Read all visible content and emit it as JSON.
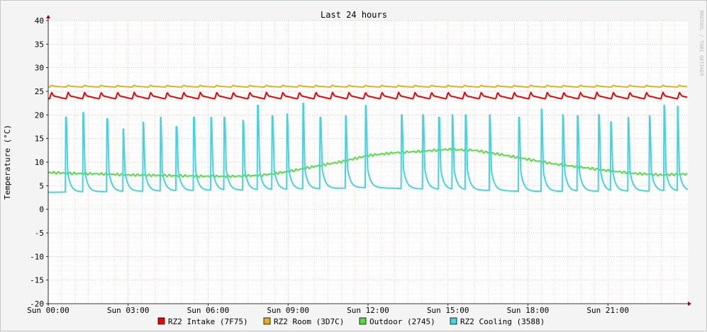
{
  "chart_data": {
    "type": "line",
    "title": "Last 24 hours",
    "ylabel": "Temperature (°C)",
    "xlabel": "",
    "watermark": "RRDTOOL / TOBI OETIKER",
    "ylim": [
      -20,
      40
    ],
    "xlim": [
      0,
      24
    ],
    "y_ticks": [
      40,
      35,
      30,
      25,
      20,
      15,
      10,
      5,
      0,
      -5,
      -10,
      -15,
      -20
    ],
    "x_ticks": [
      {
        "hour": 0,
        "label": "Sun 00:00"
      },
      {
        "hour": 3,
        "label": "Sun 03:00"
      },
      {
        "hour": 6,
        "label": "Sun 06:00"
      },
      {
        "hour": 9,
        "label": "Sun 09:00"
      },
      {
        "hour": 12,
        "label": "Sun 12:00"
      },
      {
        "hour": 15,
        "label": "Sun 15:00"
      },
      {
        "hour": 18,
        "label": "Sun 18:00"
      },
      {
        "hour": 21,
        "label": "Sun 21:00"
      }
    ],
    "grid": true,
    "legend_position": "bottom",
    "series": [
      {
        "name": "RZ2 Intake (7F75)",
        "color": "#ee0000",
        "kind": "sawtooth",
        "base": 23.4,
        "peak": 24.8,
        "period_h": 0.62,
        "phase_h": 0.05
      },
      {
        "name": "RZ2 Room (3D7C)",
        "color": "#e0b020",
        "kind": "sawtooth",
        "base": 25.9,
        "peak": 26.3,
        "period_h": 0.62,
        "phase_h": 0.05
      },
      {
        "name": "Outdoor (2745)",
        "color": "#55dd44",
        "kind": "points",
        "x": [
          0,
          1,
          2,
          3,
          4,
          5,
          6,
          7,
          8,
          9,
          10,
          11,
          12,
          13,
          14,
          15,
          16,
          17,
          18,
          19,
          20,
          21,
          22,
          23,
          24
        ],
        "values": [
          7.8,
          7.6,
          7.5,
          7.3,
          7.2,
          7.1,
          7.0,
          7.0,
          7.2,
          8.0,
          9.1,
          10.1,
          11.4,
          12.0,
          12.3,
          12.7,
          12.5,
          11.6,
          10.6,
          9.6,
          8.9,
          8.2,
          7.6,
          7.3,
          7.5
        ]
      },
      {
        "name": "RZ2 Cooling (3588)",
        "color": "#44d4e0",
        "kind": "spikes",
        "baseline": [
          {
            "x": 0,
            "y": 3.6
          },
          {
            "x": 9,
            "y": 4.2
          },
          {
            "x": 12,
            "y": 4.6
          },
          {
            "x": 15,
            "y": 4.2
          },
          {
            "x": 18,
            "y": 3.8
          },
          {
            "x": 24,
            "y": 3.9
          }
        ],
        "spikes": [
          {
            "x": 0.65,
            "y": 19.5
          },
          {
            "x": 1.3,
            "y": 20.5
          },
          {
            "x": 2.2,
            "y": 19.2
          },
          {
            "x": 2.8,
            "y": 17.0
          },
          {
            "x": 3.55,
            "y": 18.4
          },
          {
            "x": 4.2,
            "y": 19.5
          },
          {
            "x": 4.8,
            "y": 17.5
          },
          {
            "x": 5.45,
            "y": 19.5
          },
          {
            "x": 6.1,
            "y": 19.5
          },
          {
            "x": 6.6,
            "y": 19.5
          },
          {
            "x": 7.3,
            "y": 18.8
          },
          {
            "x": 7.85,
            "y": 22.0
          },
          {
            "x": 8.4,
            "y": 19.8
          },
          {
            "x": 8.95,
            "y": 20.2
          },
          {
            "x": 9.55,
            "y": 22.5
          },
          {
            "x": 10.2,
            "y": 19.5
          },
          {
            "x": 11.15,
            "y": 19.8
          },
          {
            "x": 11.9,
            "y": 22.0
          },
          {
            "x": 13.25,
            "y": 20.0
          },
          {
            "x": 14.05,
            "y": 20.0
          },
          {
            "x": 14.65,
            "y": 19.5
          },
          {
            "x": 15.15,
            "y": 20.0
          },
          {
            "x": 15.65,
            "y": 20.0
          },
          {
            "x": 16.55,
            "y": 20.0
          },
          {
            "x": 17.65,
            "y": 19.5
          },
          {
            "x": 18.5,
            "y": 21.2
          },
          {
            "x": 19.3,
            "y": 20.0
          },
          {
            "x": 19.85,
            "y": 19.8
          },
          {
            "x": 20.65,
            "y": 20.0
          },
          {
            "x": 21.1,
            "y": 18.5
          },
          {
            "x": 21.75,
            "y": 19.5
          },
          {
            "x": 22.55,
            "y": 19.8
          },
          {
            "x": 23.1,
            "y": 22.0
          },
          {
            "x": 23.6,
            "y": 21.8
          }
        ]
      }
    ]
  }
}
